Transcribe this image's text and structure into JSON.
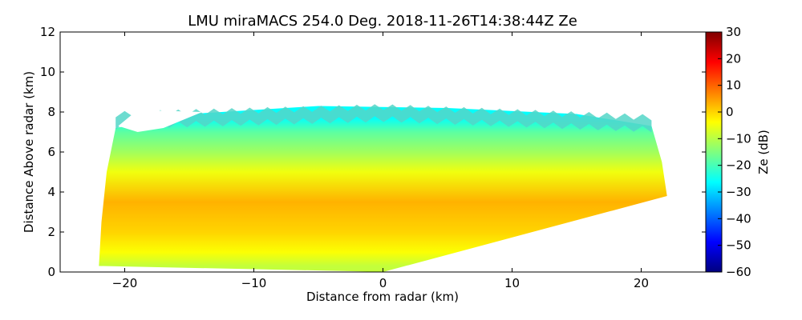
{
  "chart_data": {
    "type": "heatmap",
    "title": "LMU miraMACS 254.0 Deg. 2018-11-26T14:38:44Z  Ze",
    "xlabel": "Distance from radar (km)",
    "ylabel": "Distance Above radar  (km)",
    "xlim": [
      -25,
      25
    ],
    "ylim": [
      0,
      12
    ],
    "x_ticks": [
      -20,
      -10,
      0,
      10,
      20
    ],
    "x_tick_labels": [
      "−20",
      "−10",
      "0",
      "10",
      "20"
    ],
    "y_ticks": [
      0,
      2,
      4,
      6,
      8,
      10,
      12
    ],
    "y_tick_labels": [
      "0",
      "2",
      "4",
      "6",
      "8",
      "10",
      "12"
    ],
    "colorbar": {
      "label": "Ze (dB)",
      "range": [
        -60,
        30
      ],
      "ticks": [
        30,
        20,
        10,
        0,
        -10,
        -20,
        -30,
        -40,
        -50,
        -60
      ],
      "tick_labels": [
        "30",
        "20",
        "10",
        "0",
        "−10",
        "−20",
        "−30",
        "−40",
        "−50",
        "−60"
      ],
      "colormap": [
        "#00007f",
        "#0000ff",
        "#007fff",
        "#00ffff",
        "#7fff7f",
        "#ffff00",
        "#ff7f00",
        "#ff0000",
        "#7f0000"
      ]
    },
    "echo_region": {
      "description": "RHI scan sector of reflectivity echo",
      "left_edge_x_km": -22,
      "right_edge_x_km": 22,
      "cloud_top_km": 8.3,
      "left_base_km": 0.3,
      "right_base_km": 3.8,
      "bands": [
        {
          "height_km": 7.7,
          "ze_db": -26
        },
        {
          "height_km": 7.0,
          "ze_db": -18
        },
        {
          "height_km": 6.0,
          "ze_db": -12
        },
        {
          "height_km": 5.0,
          "ze_db": -5
        },
        {
          "height_km": 3.5,
          "ze_db": 3
        },
        {
          "height_km": 2.0,
          "ze_db": 0
        },
        {
          "height_km": 1.0,
          "ze_db": -4
        },
        {
          "height_km": 0.3,
          "ze_db": -9
        }
      ]
    }
  }
}
